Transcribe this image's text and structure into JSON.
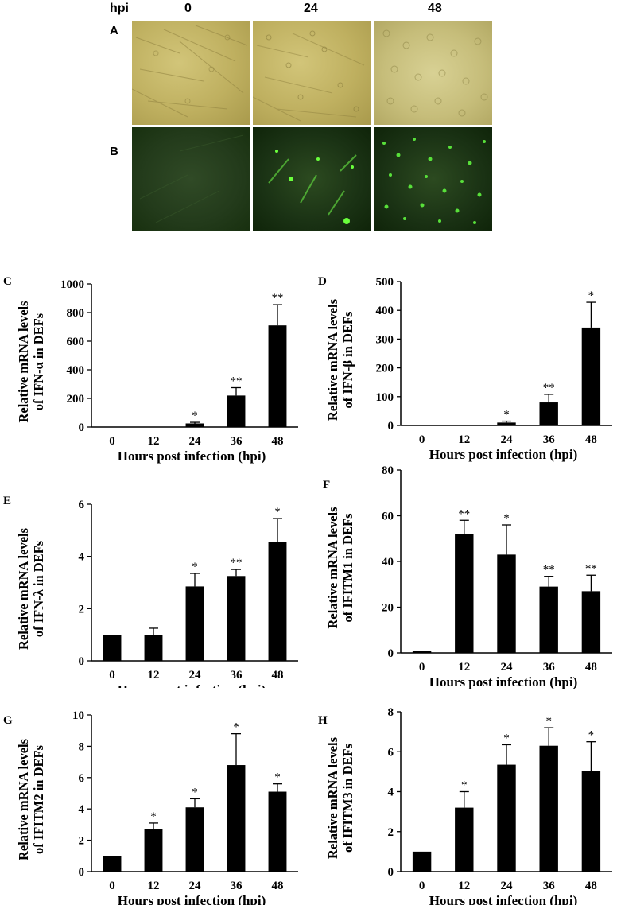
{
  "figure": {
    "header": {
      "hpi_label": "hpi",
      "times": [
        "0",
        "24",
        "48"
      ]
    },
    "rows": [
      {
        "label": "A"
      },
      {
        "label": "B"
      }
    ]
  },
  "chart_data": [
    {
      "panel": "C",
      "type": "bar",
      "categories": [
        "0",
        "12",
        "24",
        "36",
        "48"
      ],
      "values": [
        1,
        2,
        25,
        220,
        710
      ],
      "errors": [
        0,
        0,
        8,
        55,
        145
      ],
      "significance": [
        "",
        "",
        "*",
        "**",
        "**"
      ],
      "ylabel_lines": [
        "Relative mRNA levels",
        "of IFN-α in DEFs"
      ],
      "xlabel": "Hours post infection (hpi)",
      "ylim": [
        0,
        1000
      ],
      "yticks": [
        0,
        200,
        400,
        600,
        800,
        1000
      ],
      "grid": false
    },
    {
      "panel": "D",
      "type": "bar",
      "categories": [
        "0",
        "12",
        "24",
        "36",
        "48"
      ],
      "values": [
        1,
        2,
        10,
        80,
        340
      ],
      "errors": [
        0,
        0,
        5,
        28,
        88
      ],
      "significance": [
        "",
        "",
        "*",
        "**",
        "*"
      ],
      "ylabel_lines": [
        "Relative mRNA levels",
        "of IFN-β in DEFs"
      ],
      "xlabel": "Hours post infection (hpi)",
      "ylim": [
        0,
        500
      ],
      "yticks": [
        0,
        100,
        200,
        300,
        400,
        500
      ],
      "grid": false
    },
    {
      "panel": "E",
      "type": "bar",
      "categories": [
        "0",
        "12",
        "24",
        "36",
        "48"
      ],
      "values": [
        1.0,
        1.0,
        2.85,
        3.25,
        4.55
      ],
      "errors": [
        0,
        0.25,
        0.5,
        0.25,
        0.9
      ],
      "significance": [
        "",
        "",
        "*",
        "**",
        "*"
      ],
      "ylabel_lines": [
        "Relative mRNA levels",
        "of IFN-λ in DEFs"
      ],
      "xlabel": "Hours post infection (hpi)",
      "ylim": [
        0,
        6
      ],
      "yticks": [
        0,
        2,
        4,
        6
      ],
      "grid": false
    },
    {
      "panel": "F",
      "type": "bar",
      "categories": [
        "0",
        "12",
        "24",
        "36",
        "48"
      ],
      "values": [
        1,
        52,
        43,
        29,
        27
      ],
      "errors": [
        0,
        6,
        13,
        4.5,
        7
      ],
      "significance": [
        "",
        "**",
        "*",
        "**",
        "**"
      ],
      "ylabel_lines": [
        "Relative mRNA levels",
        "of IFITM1 in DEFs"
      ],
      "xlabel": "Hours post infection (hpi)",
      "ylim": [
        0,
        80
      ],
      "yticks": [
        0,
        20,
        40,
        60,
        80
      ],
      "grid": false
    },
    {
      "panel": "G",
      "type": "bar",
      "categories": [
        "0",
        "12",
        "24",
        "36",
        "48"
      ],
      "values": [
        1.0,
        2.7,
        4.1,
        6.8,
        5.1
      ],
      "errors": [
        0,
        0.4,
        0.55,
        2.0,
        0.5
      ],
      "significance": [
        "",
        "*",
        "*",
        "*",
        "*"
      ],
      "ylabel_lines": [
        "Relative mRNA levels",
        "of IFITM2 in DEFs"
      ],
      "xlabel": "Hours post infection (hpi)",
      "ylim": [
        0,
        10
      ],
      "yticks": [
        0,
        2,
        4,
        6,
        8,
        10
      ],
      "grid": false
    },
    {
      "panel": "H",
      "type": "bar",
      "categories": [
        "0",
        "12",
        "24",
        "36",
        "48"
      ],
      "values": [
        1.0,
        3.2,
        5.35,
        6.3,
        5.05
      ],
      "errors": [
        0,
        0.8,
        1.0,
        0.9,
        1.45
      ],
      "significance": [
        "",
        "*",
        "*",
        "*",
        "*"
      ],
      "ylabel_lines": [
        "Relative mRNA levels",
        "of IFITM3 in DEFs"
      ],
      "xlabel": "Hours post infection (hpi)",
      "ylim": [
        0,
        8
      ],
      "yticks": [
        0,
        2,
        4,
        6,
        8
      ],
      "grid": false
    }
  ]
}
